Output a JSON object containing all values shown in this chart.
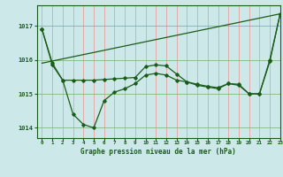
{
  "bg_color": "#cce8e8",
  "grid_color_v": "#e8a0a0",
  "grid_color_h": "#80b880",
  "line_color": "#1a5c1a",
  "xlabel": "Graphe pression niveau de la mer (hPa)",
  "xlim": [
    -0.5,
    23
  ],
  "ylim": [
    1013.7,
    1017.6
  ],
  "yticks": [
    1014,
    1015,
    1016,
    1017
  ],
  "xticks": [
    0,
    1,
    2,
    3,
    4,
    5,
    6,
    7,
    8,
    9,
    10,
    11,
    12,
    13,
    14,
    15,
    16,
    17,
    18,
    19,
    20,
    21,
    22,
    23
  ],
  "series1_x": [
    0,
    1,
    2,
    3,
    4,
    5,
    6,
    7,
    8,
    9,
    10,
    11,
    12,
    13,
    14,
    15,
    16,
    17,
    18,
    19,
    20,
    21,
    22,
    23
  ],
  "series1_y": [
    1016.9,
    1015.9,
    1015.4,
    1014.4,
    1014.1,
    1014.0,
    1014.8,
    1015.05,
    1015.15,
    1015.3,
    1015.55,
    1015.6,
    1015.55,
    1015.4,
    1015.35,
    1015.25,
    1015.2,
    1015.15,
    1015.3,
    1015.25,
    1015.0,
    1015.0,
    1016.0,
    1017.35
  ],
  "series2_x": [
    0,
    1,
    2,
    3,
    4,
    5,
    6,
    7,
    8,
    9,
    10,
    11,
    12,
    13,
    14,
    15,
    16,
    17,
    18,
    19,
    20,
    21,
    22,
    23
  ],
  "series2_y": [
    1016.9,
    1015.85,
    1015.4,
    1015.4,
    1015.4,
    1015.4,
    1015.42,
    1015.44,
    1015.46,
    1015.48,
    1015.8,
    1015.85,
    1015.82,
    1015.58,
    1015.35,
    1015.28,
    1015.22,
    1015.18,
    1015.3,
    1015.28,
    1015.0,
    1015.0,
    1015.95,
    1017.35
  ],
  "series3_x": [
    0,
    23
  ],
  "series3_y": [
    1015.9,
    1017.35
  ]
}
